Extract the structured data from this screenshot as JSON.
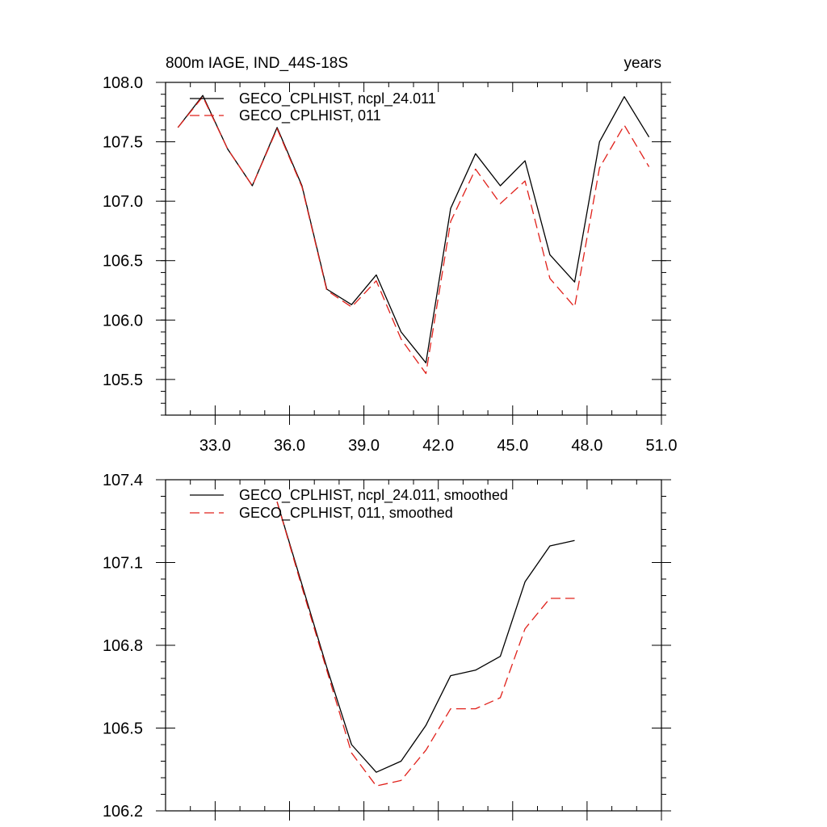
{
  "chart_data": [
    {
      "type": "line",
      "title_left": "800m IAGE, IND_44S-18S",
      "title_right": "years",
      "xlim": [
        31,
        51
      ],
      "ylim": [
        105.2,
        108.0
      ],
      "xticks": [
        33,
        36,
        39,
        42,
        45,
        48,
        51
      ],
      "xtick_labels": [
        "33.0",
        "36.0",
        "39.0",
        "42.0",
        "45.0",
        "48.0",
        "51.0"
      ],
      "yticks": [
        105.5,
        106.0,
        106.5,
        107.0,
        107.5,
        108.0
      ],
      "ytick_labels": [
        "105.5",
        "106.0",
        "106.5",
        "107.0",
        "107.5",
        "108.0"
      ],
      "legend_position": "top-left",
      "x": [
        31.5,
        32.5,
        33.5,
        34.5,
        35.5,
        36.5,
        37.5,
        38.5,
        39.5,
        40.5,
        41.5,
        42.5,
        43.5,
        44.5,
        45.5,
        46.5,
        47.5,
        48.5,
        49.5,
        50.5
      ],
      "series": [
        {
          "name": "GECO_CPLHIST, ncpl_24.011",
          "color": "#000000",
          "style": "solid",
          "values": [
            107.62,
            107.89,
            107.44,
            107.13,
            107.62,
            107.13,
            106.26,
            106.13,
            106.38,
            105.9,
            105.64,
            106.94,
            107.4,
            107.13,
            107.34,
            106.55,
            106.32,
            107.5,
            107.88,
            107.54
          ]
        },
        {
          "name": "GECO_CPLHIST, 011",
          "color": "#e0201a",
          "style": "dashed",
          "values": [
            107.62,
            107.88,
            107.44,
            107.13,
            107.61,
            107.12,
            106.25,
            106.11,
            106.33,
            105.84,
            105.55,
            106.83,
            107.27,
            106.98,
            107.17,
            106.35,
            106.11,
            107.28,
            107.64,
            107.29
          ]
        }
      ]
    },
    {
      "type": "line",
      "xlim": [
        31,
        51
      ],
      "ylim": [
        106.2,
        107.4
      ],
      "xticks": [
        33,
        36,
        39,
        42,
        45,
        48,
        51
      ],
      "yticks": [
        106.2,
        106.5,
        106.8,
        107.1,
        107.4
      ],
      "ytick_labels": [
        "106.2",
        "106.5",
        "106.8",
        "107.1",
        "107.4"
      ],
      "legend_position": "top-left",
      "x": [
        35.5,
        36.5,
        37.5,
        38.5,
        39.5,
        40.5,
        41.5,
        42.5,
        43.5,
        44.5,
        45.5,
        46.5,
        47.5
      ],
      "series": [
        {
          "name": "GECO_CPLHIST, ncpl_24.011, smoothed",
          "color": "#000000",
          "style": "solid",
          "values": [
            107.32,
            107.02,
            106.72,
            106.44,
            106.34,
            106.38,
            106.51,
            106.69,
            106.71,
            106.76,
            107.03,
            107.16,
            107.18
          ]
        },
        {
          "name": "GECO_CPLHIST, 011, smoothed",
          "color": "#e0201a",
          "style": "dashed",
          "values": [
            107.32,
            107.01,
            106.71,
            106.41,
            106.29,
            106.31,
            106.42,
            106.57,
            106.57,
            106.61,
            106.86,
            106.97,
            106.97
          ]
        }
      ]
    }
  ]
}
